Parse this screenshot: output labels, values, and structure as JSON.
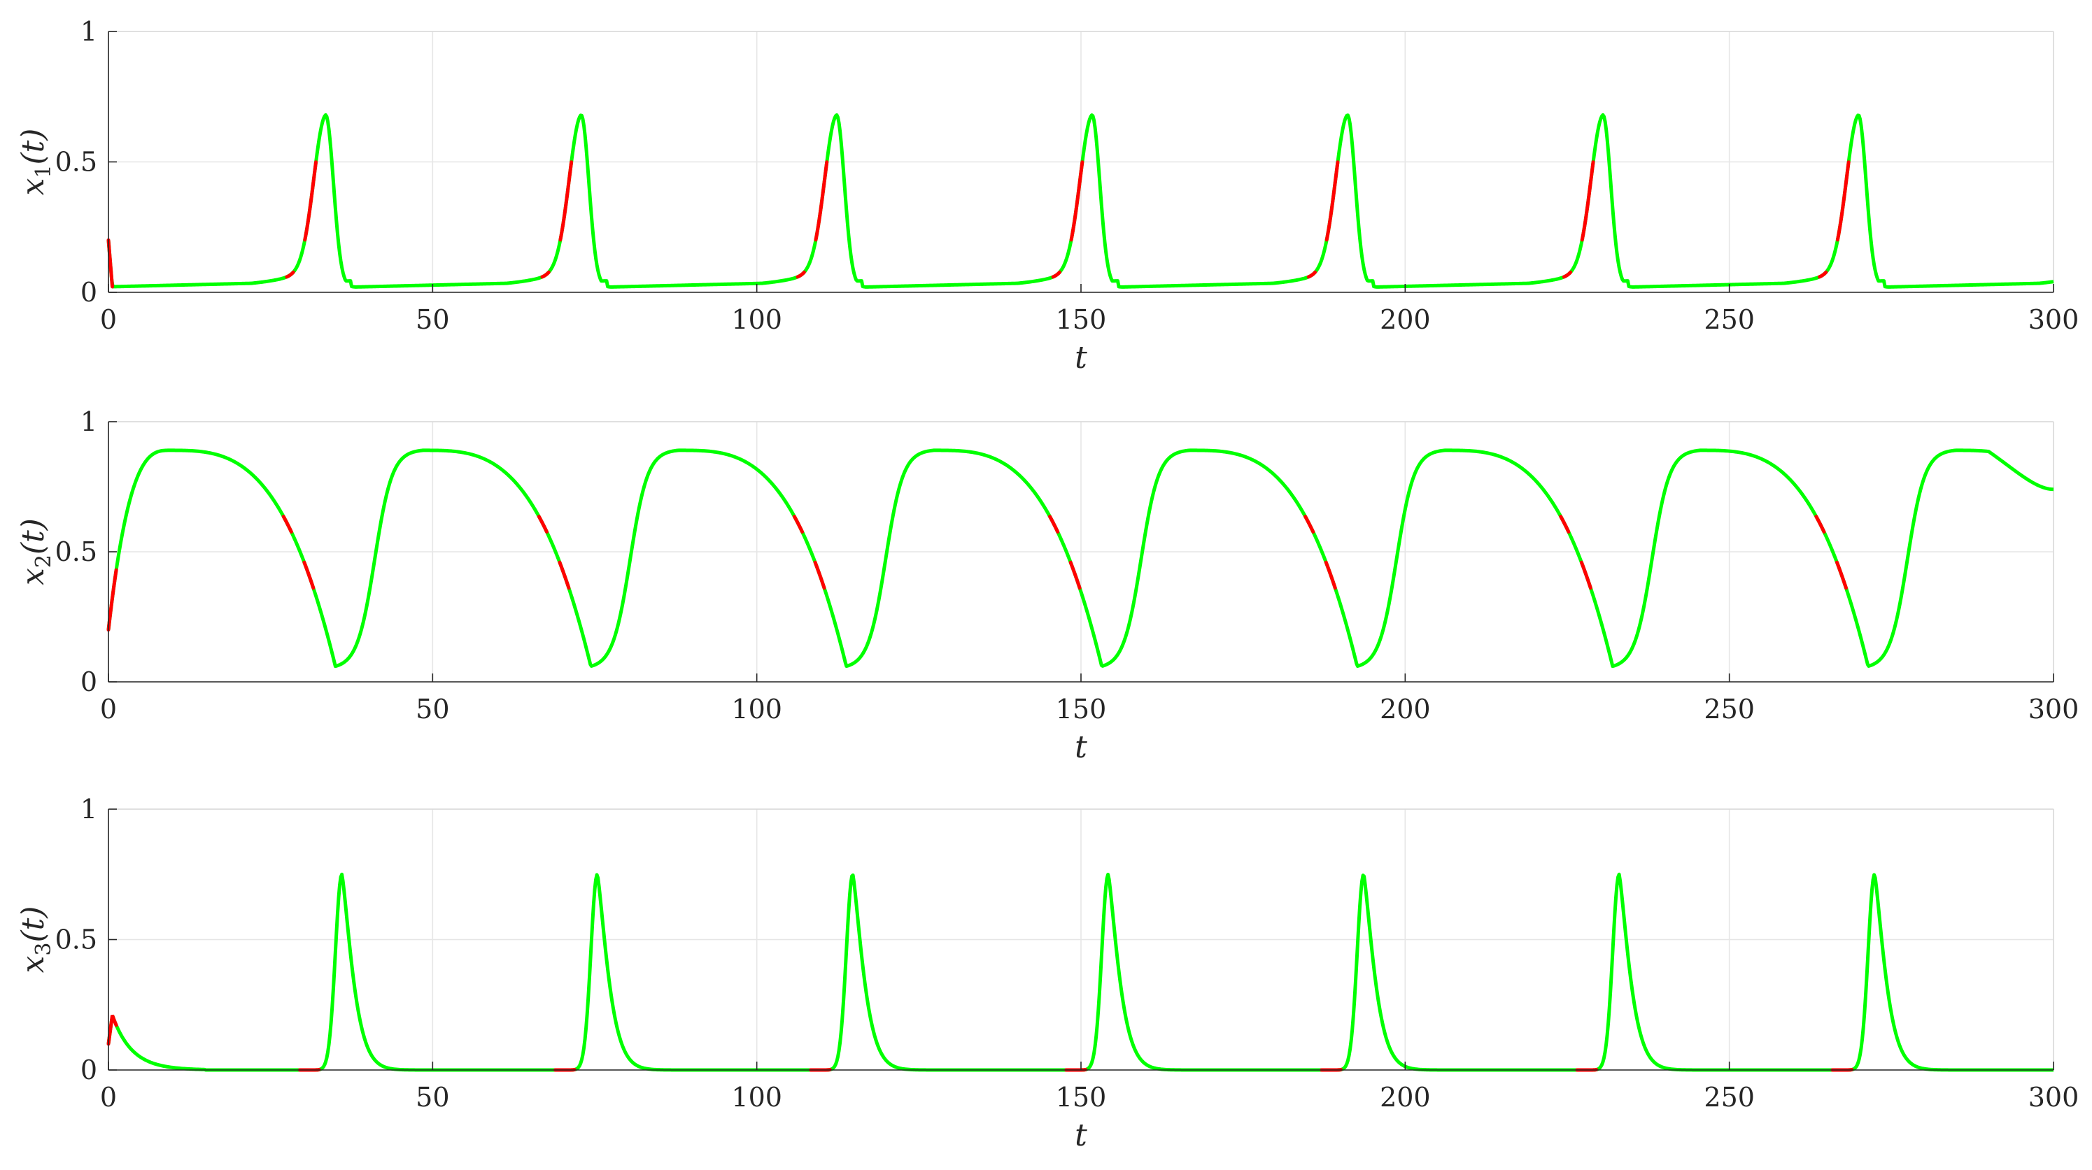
{
  "chart_data": [
    {
      "type": "line",
      "xlabel": "t",
      "ylabel": "x_1(t)",
      "xlim": [
        0,
        300
      ],
      "ylim": [
        0,
        1
      ],
      "xticks": [
        "0",
        "50",
        "100",
        "150",
        "200",
        "250",
        "300"
      ],
      "yticks": [
        "0",
        "0.5",
        "1"
      ],
      "grid": true,
      "model": {
        "initial_value": 0.2,
        "initial_drop_to": 0.02,
        "baseline": 0.02,
        "baseline_growth": 0.03,
        "peak_value": 0.68,
        "period": 39.4,
        "first_peak_t": 33.5,
        "red_segments_relative_to_peak": [
          [
            -3.2,
            -1.5
          ],
          [
            -6.0,
            -5.0
          ]
        ]
      },
      "colors": {
        "main": "#00ff00",
        "highlight": "#ff0000"
      }
    },
    {
      "type": "line",
      "xlabel": "t",
      "ylabel": "x_2(t)",
      "xlim": [
        0,
        300
      ],
      "ylim": [
        0,
        1
      ],
      "xticks": [
        "0",
        "50",
        "100",
        "150",
        "200",
        "250",
        "300"
      ],
      "yticks": [
        "0",
        "0.5",
        "1"
      ],
      "grid": true,
      "model": {
        "initial_value": 0.2,
        "max_value": 0.89,
        "min_value": 0.06,
        "period": 39.4,
        "first_min_t": 35.0,
        "first_max_t": 9.5,
        "end_value": 0.74,
        "red_segments_relative_to_min": [
          [
            -4.8,
            -3.4
          ],
          [
            -8.0,
            -6.8
          ]
        ]
      },
      "colors": {
        "main": "#00ff00",
        "highlight": "#ff0000"
      }
    },
    {
      "type": "line",
      "xlabel": "t",
      "ylabel": "x_3(t)",
      "xlim": [
        0,
        300
      ],
      "ylim": [
        0,
        1
      ],
      "xticks": [
        "0",
        "50",
        "100",
        "150",
        "200",
        "250",
        "300"
      ],
      "yticks": [
        "0",
        "0.5",
        "1"
      ],
      "grid": true,
      "model": {
        "initial_value": 0.1,
        "initial_bump": 0.21,
        "baseline": 0.0,
        "peak_value": 0.75,
        "period": 39.4,
        "first_peak_t": 36.0,
        "red_segments_relative_to_peak": [
          [
            -6.5,
            -3.5
          ]
        ]
      },
      "colors": {
        "main": "#00ff00",
        "highlight": "#ff0000"
      }
    }
  ]
}
